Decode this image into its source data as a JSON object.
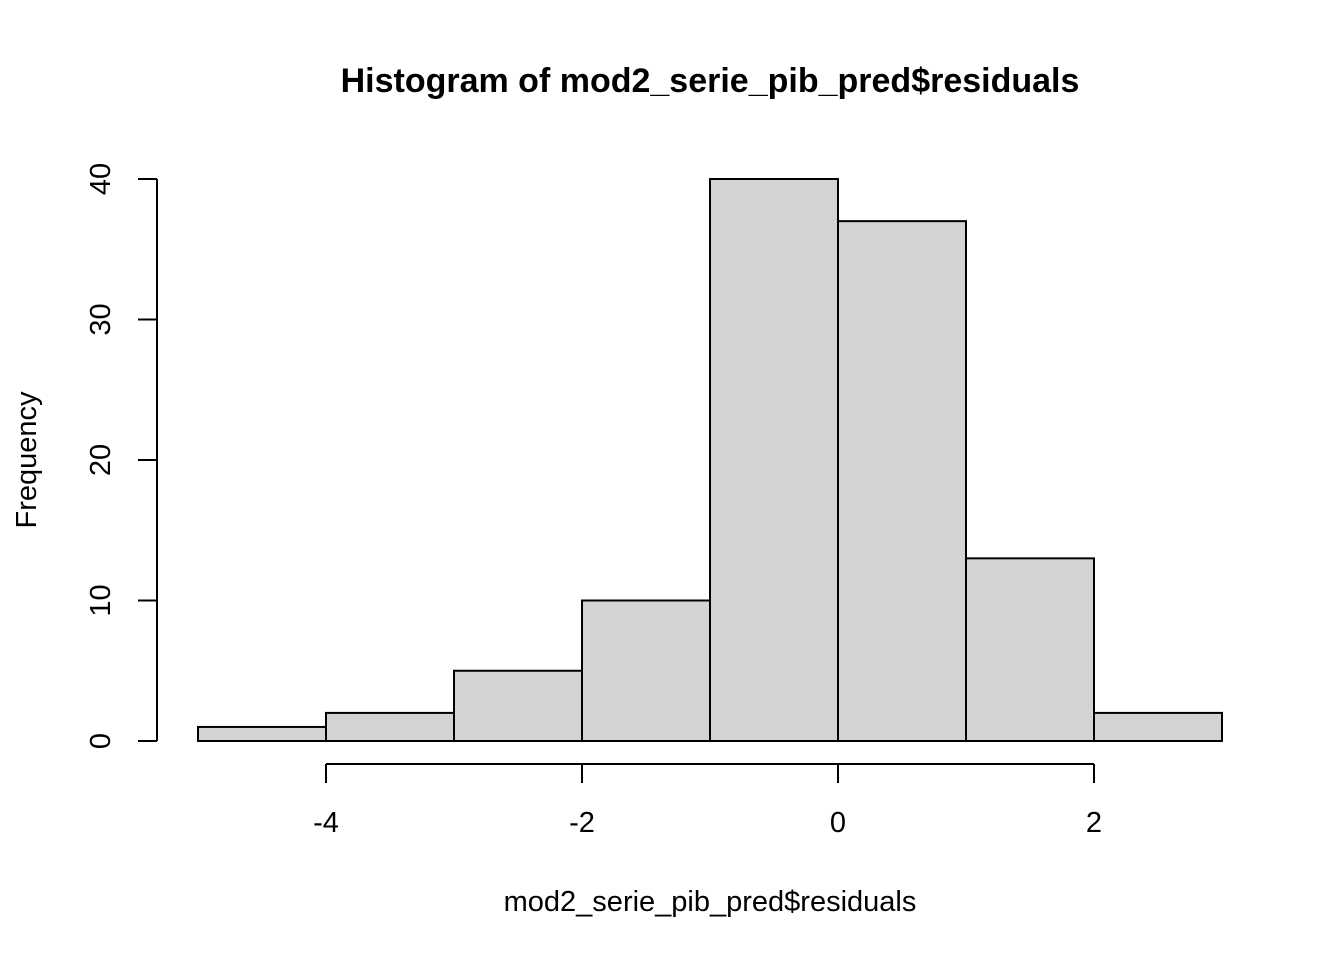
{
  "chart_data": {
    "type": "bar",
    "title": "Histogram of mod2_serie_pib_pred$residuals",
    "xlabel": "mod2_serie_pib_pred$residuals",
    "ylabel": "Frequency",
    "bins": [
      {
        "start": -5,
        "end": -4,
        "count": 1
      },
      {
        "start": -4,
        "end": -3,
        "count": 2
      },
      {
        "start": -3,
        "end": -2,
        "count": 5
      },
      {
        "start": -2,
        "end": -1,
        "count": 10
      },
      {
        "start": -1,
        "end": 0,
        "count": 40
      },
      {
        "start": 0,
        "end": 1,
        "count": 37
      },
      {
        "start": 1,
        "end": 2,
        "count": 13
      },
      {
        "start": 2,
        "end": 3,
        "count": 2
      }
    ],
    "xlim": [
      -5,
      3
    ],
    "ylim": [
      0,
      40
    ],
    "x_ticks": [
      -4,
      -2,
      0,
      2
    ],
    "x_tick_labels": [
      "-4",
      "-2",
      "0",
      "2"
    ],
    "y_ticks": [
      0,
      10,
      20,
      30,
      40
    ],
    "y_tick_labels": [
      "0",
      "10",
      "20",
      "30",
      "40"
    ],
    "bar_fill": "#d3d3d3",
    "bar_stroke": "#000000",
    "grid": false,
    "legend": "none"
  }
}
